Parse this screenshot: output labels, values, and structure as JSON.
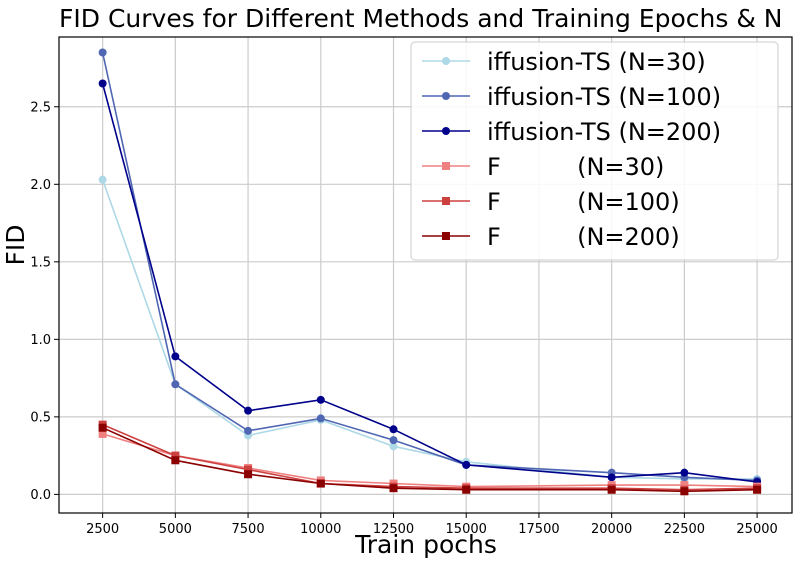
{
  "chart_data": {
    "type": "line",
    "title": "FID Curves for Different Methods and Training Epochs & N",
    "xlabel": "Train   pochs",
    "ylabel": "FID",
    "x": [
      2500,
      5000,
      7500,
      10000,
      12500,
      15000,
      20000,
      22500,
      25000
    ],
    "xticks": [
      2500,
      5000,
      7500,
      10000,
      12500,
      15000,
      17500,
      20000,
      22500,
      25000
    ],
    "xtick_labels": [
      "2500",
      "5000",
      "7500",
      "10000",
      "12500",
      "15000",
      "17500",
      "20000",
      "22500",
      "25000"
    ],
    "xlim": [
      1000,
      26200
    ],
    "yticks": [
      0.0,
      0.5,
      1.0,
      1.5,
      2.0,
      2.5
    ],
    "ytick_labels": [
      "0.0",
      "0.5",
      "1.0",
      "1.5",
      "2.0",
      "2.5"
    ],
    "ylim": [
      -0.12,
      2.95
    ],
    "grid": true,
    "legend_position": "top-right",
    "series": [
      {
        "name": "iffusion-TS (N=30)",
        "color": "#add8e6",
        "marker": "circle",
        "values": [
          2.03,
          0.71,
          0.38,
          0.48,
          0.31,
          0.21,
          0.11,
          0.1,
          0.1
        ]
      },
      {
        "name": "iffusion-TS (N=100)",
        "color": "#4f66b3",
        "marker": "circle",
        "values": [
          2.85,
          0.71,
          0.41,
          0.49,
          0.35,
          0.19,
          0.14,
          0.11,
          0.09
        ]
      },
      {
        "name": "iffusion-TS (N=200)",
        "color": "#00008b",
        "marker": "circle",
        "values": [
          2.65,
          0.89,
          0.54,
          0.61,
          0.42,
          0.19,
          0.11,
          0.14,
          0.08
        ]
      },
      {
        "name": "F          (N=30)",
        "color": "#f08080",
        "marker": "square",
        "values": [
          0.39,
          0.25,
          0.17,
          0.09,
          0.07,
          0.05,
          0.06,
          0.06,
          0.05
        ]
      },
      {
        "name": "F          (N=100)",
        "color": "#cd4040",
        "marker": "square",
        "values": [
          0.45,
          0.25,
          0.16,
          0.07,
          0.05,
          0.04,
          0.04,
          0.03,
          0.04
        ]
      },
      {
        "name": "F          (N=200)",
        "color": "#8b0000",
        "marker": "square",
        "values": [
          0.43,
          0.22,
          0.13,
          0.07,
          0.04,
          0.03,
          0.03,
          0.02,
          0.03
        ]
      }
    ]
  }
}
